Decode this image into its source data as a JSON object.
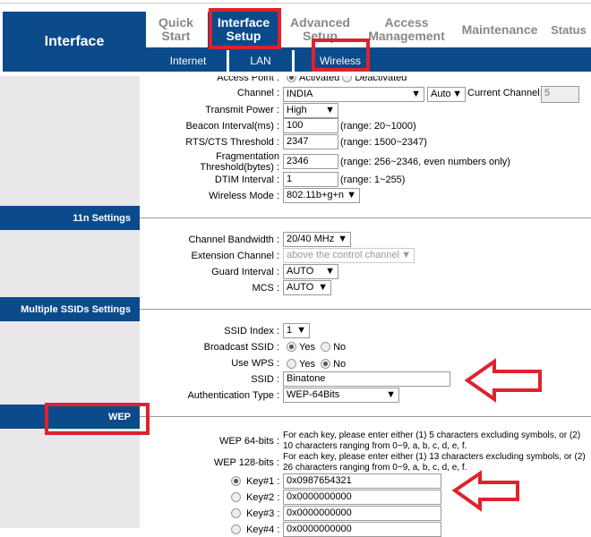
{
  "header": {
    "brand": "Interface",
    "tabs": [
      {
        "label": "Quick Start"
      },
      {
        "label": "Interface Setup"
      },
      {
        "label": "Advanced Setup"
      },
      {
        "label": "Access Management"
      },
      {
        "label": "Maintenance"
      },
      {
        "label": "Status"
      }
    ],
    "subtabs": [
      {
        "label": "Internet"
      },
      {
        "label": "LAN"
      },
      {
        "label": "Wireless"
      }
    ]
  },
  "wireless": {
    "access_point": {
      "label": "Access Point :",
      "opt1": "Activated",
      "opt2": "Deactivated",
      "selected": "Activated"
    },
    "channel": {
      "label": "Channel :",
      "value": "INDIA",
      "auto": "Auto",
      "current_label": "Current Channel:",
      "current": "5"
    },
    "transmit_power": {
      "label": "Transmit Power :",
      "value": "High"
    },
    "beacon": {
      "label": "Beacon Interval(ms) :",
      "value": "100",
      "range": "(range: 20~1000)"
    },
    "rts": {
      "label": "RTS/CTS Threshold :",
      "value": "2347",
      "range": "(range: 1500~2347)"
    },
    "frag": {
      "label": "Fragmentation Threshold(bytes) :",
      "value": "2346",
      "range": "(range: 256~2346, even numbers only)"
    },
    "dtim": {
      "label": "DTIM Interval :",
      "value": "1",
      "range": "(range: 1~255)"
    },
    "mode": {
      "label": "Wireless Mode :",
      "value": "802.11b+g+n"
    }
  },
  "n11": {
    "title": "11n Settings",
    "bandwidth": {
      "label": "Channel Bandwidth :",
      "value": "20/40 MHz"
    },
    "extension": {
      "label": "Extension Channel :",
      "value": "above the control channel"
    },
    "guard": {
      "label": "Guard Interval :",
      "value": "AUTO"
    },
    "mcs": {
      "label": "MCS :",
      "value": "AUTO"
    }
  },
  "ssids": {
    "title": "Multiple SSIDs Settings",
    "index": {
      "label": "SSID Index :",
      "value": "1"
    },
    "broadcast": {
      "label": "Broadcast SSID :",
      "yes": "Yes",
      "no": "No",
      "selected": "Yes"
    },
    "wps": {
      "label": "Use WPS :",
      "yes": "Yes",
      "no": "No",
      "selected": "No"
    },
    "ssid": {
      "label": "SSID :",
      "value": "Binatone"
    },
    "auth": {
      "label": "Authentication Type :",
      "value": "WEP-64Bits"
    }
  },
  "wep": {
    "title": "WEP",
    "w64": {
      "label": "WEP 64-bits :",
      "line1": "For each key, please enter either (1) 5 characters excluding symbols, or (2) 10 characters",
      "line2": "ranging from 0~9, a, b, c, d, e, f."
    },
    "w128": {
      "label": "WEP 128-bits :",
      "line1": "For each key, please enter either (1) 13 characters excluding symbols, or (2) 26 characters",
      "line2": "ranging from 0~9, a, b, c, d, e, f."
    },
    "keys": [
      {
        "label": "Key#1",
        "value": "0x0987654321",
        "selected": true
      },
      {
        "label": "Key#2",
        "value": "0x0000000000"
      },
      {
        "label": "Key#3",
        "value": "0x0000000000"
      },
      {
        "label": "Key#4",
        "value": "0x0000000000"
      }
    ]
  },
  "colors": {
    "brand_blue": "#0b4a8b",
    "annotation_red": "#e0212e"
  }
}
